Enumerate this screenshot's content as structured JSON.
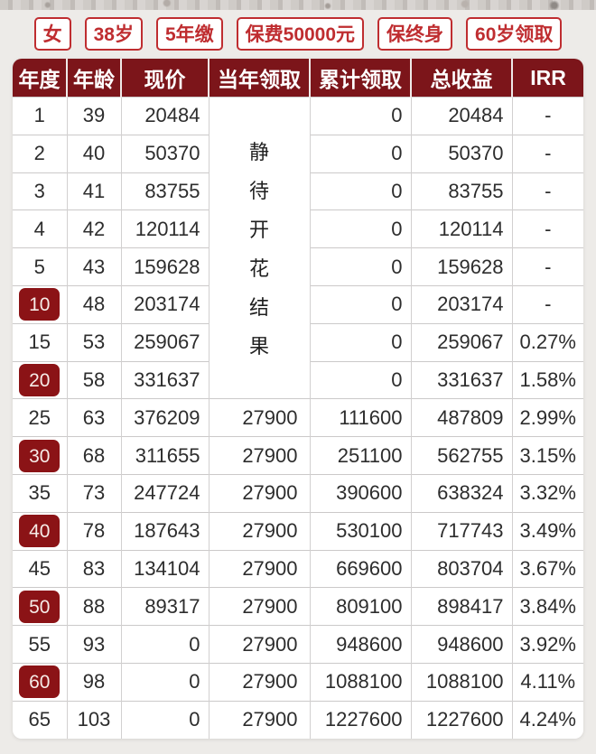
{
  "colors": {
    "page_bg": "#edebe8",
    "badge_red": "#bf2d30",
    "header_maroon": "#7c151a",
    "year_badge_maroon": "#8b1316",
    "grid_line": "#cbc9c9"
  },
  "header_badges": {
    "items": [
      "女",
      "38岁",
      "5年缴",
      "保费50000元",
      "保终身",
      "60岁领取"
    ]
  },
  "chart_data": {
    "type": "table",
    "columns": [
      "年度",
      "年龄",
      "现价",
      "当年领取",
      "累计领取",
      "总收益",
      "IRR"
    ],
    "merged_cell": {
      "column": "当年领取",
      "text": "静待开花结果",
      "rows_covered": 8,
      "covers_years": "1-20"
    },
    "rows": [
      {
        "year": "1",
        "age": "39",
        "cash_value": "20484",
        "annual_draw": null,
        "cumulative_draw": "0",
        "total_return": "20484",
        "irr": "-",
        "highlighted": false
      },
      {
        "year": "2",
        "age": "40",
        "cash_value": "50370",
        "annual_draw": null,
        "cumulative_draw": "0",
        "total_return": "50370",
        "irr": "-",
        "highlighted": false
      },
      {
        "year": "3",
        "age": "41",
        "cash_value": "83755",
        "annual_draw": null,
        "cumulative_draw": "0",
        "total_return": "83755",
        "irr": "-",
        "highlighted": false
      },
      {
        "year": "4",
        "age": "42",
        "cash_value": "120114",
        "annual_draw": null,
        "cumulative_draw": "0",
        "total_return": "120114",
        "irr": "-",
        "highlighted": false
      },
      {
        "year": "5",
        "age": "43",
        "cash_value": "159628",
        "annual_draw": null,
        "cumulative_draw": "0",
        "total_return": "159628",
        "irr": "-",
        "highlighted": false
      },
      {
        "year": "10",
        "age": "48",
        "cash_value": "203174",
        "annual_draw": null,
        "cumulative_draw": "0",
        "total_return": "203174",
        "irr": "-",
        "highlighted": true
      },
      {
        "year": "15",
        "age": "53",
        "cash_value": "259067",
        "annual_draw": null,
        "cumulative_draw": "0",
        "total_return": "259067",
        "irr": "0.27%",
        "highlighted": false
      },
      {
        "year": "20",
        "age": "58",
        "cash_value": "331637",
        "annual_draw": null,
        "cumulative_draw": "0",
        "total_return": "331637",
        "irr": "1.58%",
        "highlighted": true
      },
      {
        "year": "25",
        "age": "63",
        "cash_value": "376209",
        "annual_draw": "27900",
        "cumulative_draw": "111600",
        "total_return": "487809",
        "irr": "2.99%",
        "highlighted": false
      },
      {
        "year": "30",
        "age": "68",
        "cash_value": "311655",
        "annual_draw": "27900",
        "cumulative_draw": "251100",
        "total_return": "562755",
        "irr": "3.15%",
        "highlighted": true
      },
      {
        "year": "35",
        "age": "73",
        "cash_value": "247724",
        "annual_draw": "27900",
        "cumulative_draw": "390600",
        "total_return": "638324",
        "irr": "3.32%",
        "highlighted": false
      },
      {
        "year": "40",
        "age": "78",
        "cash_value": "187643",
        "annual_draw": "27900",
        "cumulative_draw": "530100",
        "total_return": "717743",
        "irr": "3.49%",
        "highlighted": true
      },
      {
        "year": "45",
        "age": "83",
        "cash_value": "134104",
        "annual_draw": "27900",
        "cumulative_draw": "669600",
        "total_return": "803704",
        "irr": "3.67%",
        "highlighted": false
      },
      {
        "year": "50",
        "age": "88",
        "cash_value": "89317",
        "annual_draw": "27900",
        "cumulative_draw": "809100",
        "total_return": "898417",
        "irr": "3.84%",
        "highlighted": true
      },
      {
        "year": "55",
        "age": "93",
        "cash_value": "0",
        "annual_draw": "27900",
        "cumulative_draw": "948600",
        "total_return": "948600",
        "irr": "3.92%",
        "highlighted": false
      },
      {
        "year": "60",
        "age": "98",
        "cash_value": "0",
        "annual_draw": "27900",
        "cumulative_draw": "1088100",
        "total_return": "1088100",
        "irr": "4.11%",
        "highlighted": true
      },
      {
        "year": "65",
        "age": "103",
        "cash_value": "0",
        "annual_draw": "27900",
        "cumulative_draw": "1227600",
        "total_return": "1227600",
        "irr": "4.24%",
        "highlighted": false
      }
    ]
  }
}
